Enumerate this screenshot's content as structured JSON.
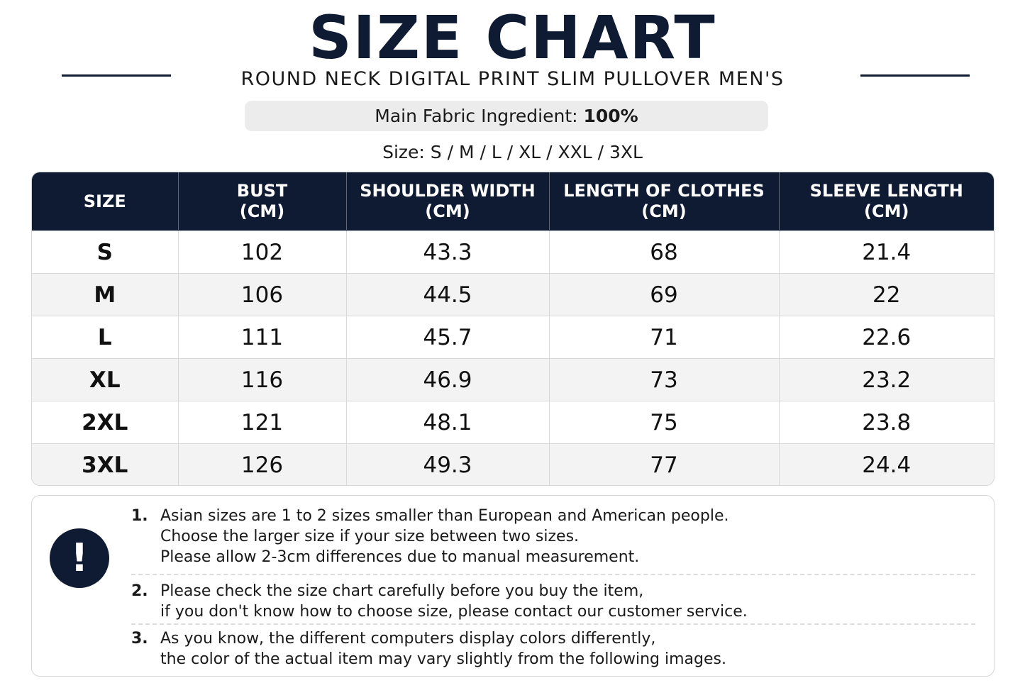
{
  "header": {
    "title": "SIZE CHART",
    "subtitle": "ROUND NECK DIGITAL PRINT SLIM PULLOVER MEN'S",
    "fabric_label": "Main Fabric Ingredient:",
    "fabric_value": "100%",
    "sizes_line": "Size: S / M / L / XL / XXL / 3XL"
  },
  "table": {
    "headers": [
      {
        "line1": "SIZE",
        "line2": ""
      },
      {
        "line1": "BUST",
        "line2": "(CM)"
      },
      {
        "line1": "SHOULDER WIDTH",
        "line2": "(CM)"
      },
      {
        "line1": "LENGTH OF CLOTHES",
        "line2": "(CM)"
      },
      {
        "line1": "SLEEVE LENGTH",
        "line2": "(CM)"
      }
    ],
    "rows": [
      [
        "S",
        "102",
        "43.3",
        "68",
        "21.4"
      ],
      [
        "M",
        "106",
        "44.5",
        "69",
        "22"
      ],
      [
        "L",
        "111",
        "45.7",
        "71",
        "22.6"
      ],
      [
        "XL",
        "116",
        "46.9",
        "73",
        "23.2"
      ],
      [
        "2XL",
        "121",
        "48.1",
        "75",
        "23.8"
      ],
      [
        "3XL",
        "126",
        "49.3",
        "77",
        "24.4"
      ]
    ]
  },
  "notes": {
    "icon": "exclamation-icon",
    "icon_glyph": "!",
    "items": [
      {
        "num": "1.",
        "lines": [
          "Asian sizes are 1 to 2 sizes smaller than European and American people.",
          "Choose the larger size if your size between two sizes.",
          "Please allow 2-3cm differences due to manual measurement."
        ]
      },
      {
        "num": "2.",
        "lines": [
          "Please check the size chart carefully before you buy the item,",
          "if you don't know how to choose size, please contact our customer service."
        ]
      },
      {
        "num": "3.",
        "lines": [
          "As you know, the different computers display colors differently,",
          "the color of the actual item may vary slightly from the following images."
        ]
      }
    ]
  },
  "colors": {
    "navy": "#0f1b33",
    "stripe": "#f3f3f3",
    "pill": "#ececec"
  }
}
